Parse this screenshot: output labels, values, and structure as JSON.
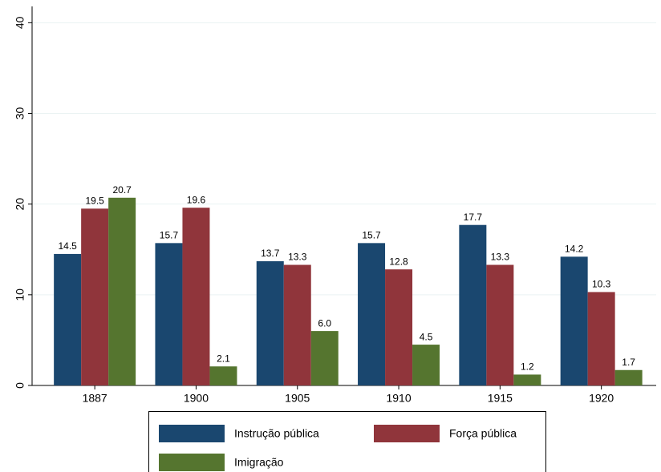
{
  "chart_data": {
    "type": "bar",
    "categories": [
      "1887",
      "1900",
      "1905",
      "1910",
      "1915",
      "1920"
    ],
    "series": [
      {
        "name": "Instrução pública",
        "color": "#1a476f",
        "values": [
          14.5,
          15.7,
          13.7,
          15.7,
          17.7,
          14.2
        ],
        "value_labels": [
          "14.5",
          "15.7",
          "13.7",
          "15.7",
          "17.7",
          "14.2"
        ]
      },
      {
        "name": "Força pública",
        "color": "#90353b",
        "values": [
          19.5,
          19.6,
          13.3,
          12.8,
          13.3,
          10.3
        ],
        "value_labels": [
          "19.5",
          "19.6",
          "13.3",
          "12.8",
          "13.3",
          "10.3"
        ]
      },
      {
        "name": "Imigração",
        "color": "#55752f",
        "values": [
          20.7,
          2.1,
          6.0,
          4.5,
          1.2,
          1.7
        ],
        "value_labels": [
          "20.7",
          "2.1",
          "6.0",
          "4.5",
          "1.2",
          "1.7"
        ]
      }
    ],
    "ylim": [
      0,
      41.8
    ],
    "yticks": [
      0,
      10,
      20,
      30,
      40
    ],
    "grid": true,
    "legend": "bottom"
  }
}
